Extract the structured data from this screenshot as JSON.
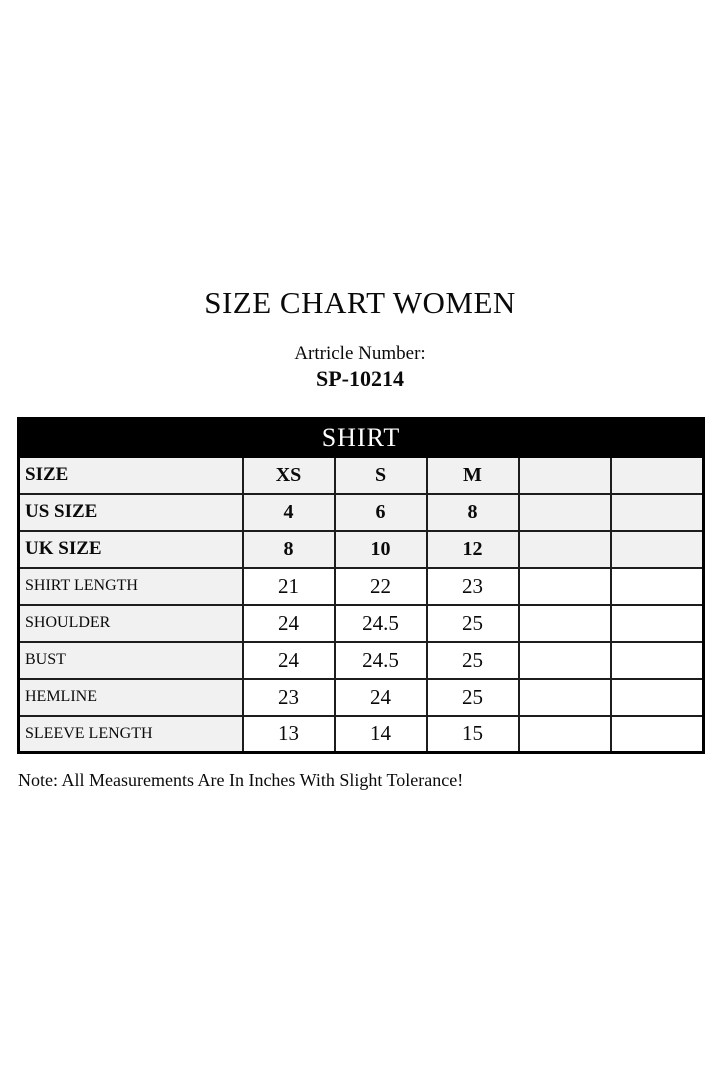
{
  "header": {
    "title": "SIZE CHART WOMEN",
    "article_label": "Artricle Number:",
    "article_number": "SP-10214"
  },
  "table": {
    "title": "SHIRT",
    "size_rows": [
      {
        "label": "SIZE",
        "values": [
          "XS",
          "S",
          "M",
          "",
          ""
        ]
      },
      {
        "label": "US SIZE",
        "values": [
          "4",
          "6",
          "8",
          "",
          ""
        ]
      },
      {
        "label": "UK SIZE",
        "values": [
          "8",
          "10",
          "12",
          "",
          ""
        ]
      }
    ],
    "measurement_rows": [
      {
        "label": "SHIRT LENGTH",
        "values": [
          "21",
          "22",
          "23",
          "",
          ""
        ]
      },
      {
        "label": "SHOULDER",
        "values": [
          "24",
          "24.5",
          "25",
          "",
          ""
        ]
      },
      {
        "label": "BUST",
        "values": [
          "24",
          "24.5",
          "25",
          "",
          ""
        ]
      },
      {
        "label": "HEMLINE",
        "values": [
          "23",
          "24",
          "25",
          "",
          ""
        ]
      },
      {
        "label": "SLEEVE LENGTH",
        "values": [
          "13",
          "14",
          "15",
          "",
          ""
        ]
      }
    ]
  },
  "footer": {
    "note": "Note: All Measurements Are In Inches With Slight Tolerance!"
  },
  "colors": {
    "table_header_bg": "#000000",
    "table_header_text": "#ffffff",
    "shaded_cell_bg": "#f1f1f1",
    "white_cell_bg": "#ffffff",
    "border": "#1d1d1d",
    "text": "#0a0a0a",
    "page_bg": "#ffffff"
  },
  "chart_data": {
    "type": "table",
    "title": "SHIRT",
    "header_row": [
      "SIZE",
      "XS",
      "S",
      "M",
      "",
      ""
    ],
    "rows": [
      [
        "US SIZE",
        "4",
        "6",
        "8",
        "",
        ""
      ],
      [
        "UK SIZE",
        "8",
        "10",
        "12",
        "",
        ""
      ],
      [
        "SHIRT LENGTH",
        "21",
        "22",
        "23",
        "",
        ""
      ],
      [
        "SHOULDER",
        "24",
        "24.5",
        "25",
        "",
        ""
      ],
      [
        "BUST",
        "24",
        "24.5",
        "25",
        "",
        ""
      ],
      [
        "HEMLINE",
        "23",
        "24",
        "25",
        "",
        ""
      ],
      [
        "SLEEVE LENGTH",
        "13",
        "14",
        "15",
        "",
        ""
      ]
    ],
    "units": "inches"
  }
}
